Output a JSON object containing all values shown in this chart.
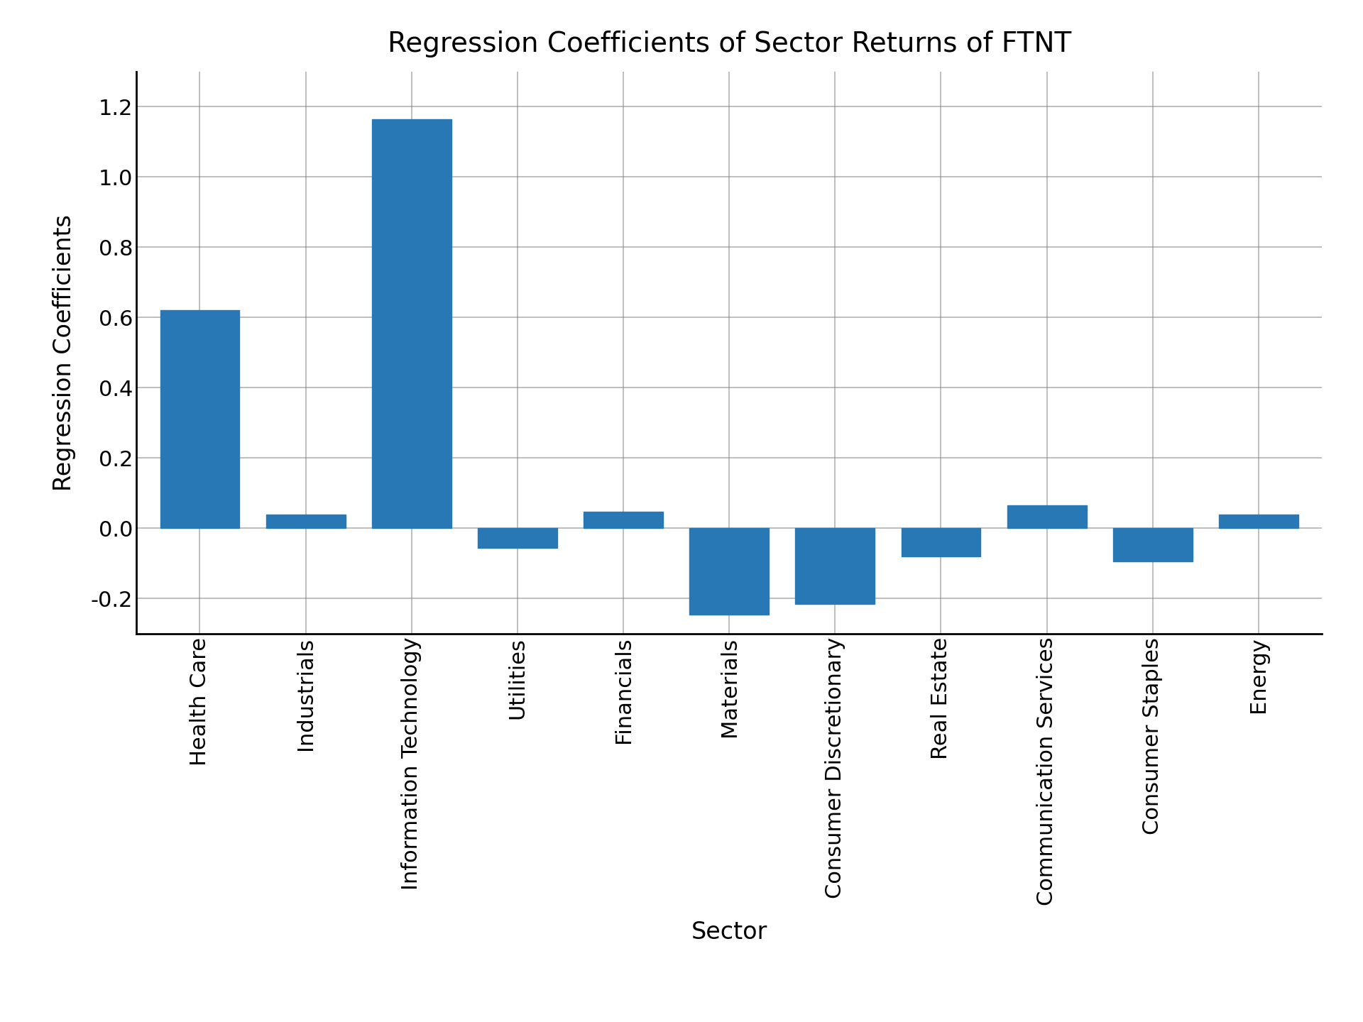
{
  "categories": [
    "Health Care",
    "Industrials",
    "Information Technology",
    "Utilities",
    "Financials",
    "Materials",
    "Consumer Discretionary",
    "Real Estate",
    "Communication Services",
    "Consumer Staples",
    "Energy"
  ],
  "values": [
    0.62,
    0.038,
    1.165,
    -0.055,
    0.048,
    -0.245,
    -0.215,
    -0.08,
    0.065,
    -0.095,
    0.038
  ],
  "bar_color": "#2878b5",
  "title": "Regression Coefficients of Sector Returns of FTNT",
  "xlabel": "Sector",
  "ylabel": "Regression Coefficients",
  "ylim": [
    -0.3,
    1.3
  ],
  "yticks": [
    -0.2,
    0.0,
    0.2,
    0.4,
    0.6,
    0.8,
    1.0,
    1.2
  ],
  "title_fontsize": 28,
  "label_fontsize": 24,
  "tick_fontsize": 22,
  "bar_width": 0.75
}
